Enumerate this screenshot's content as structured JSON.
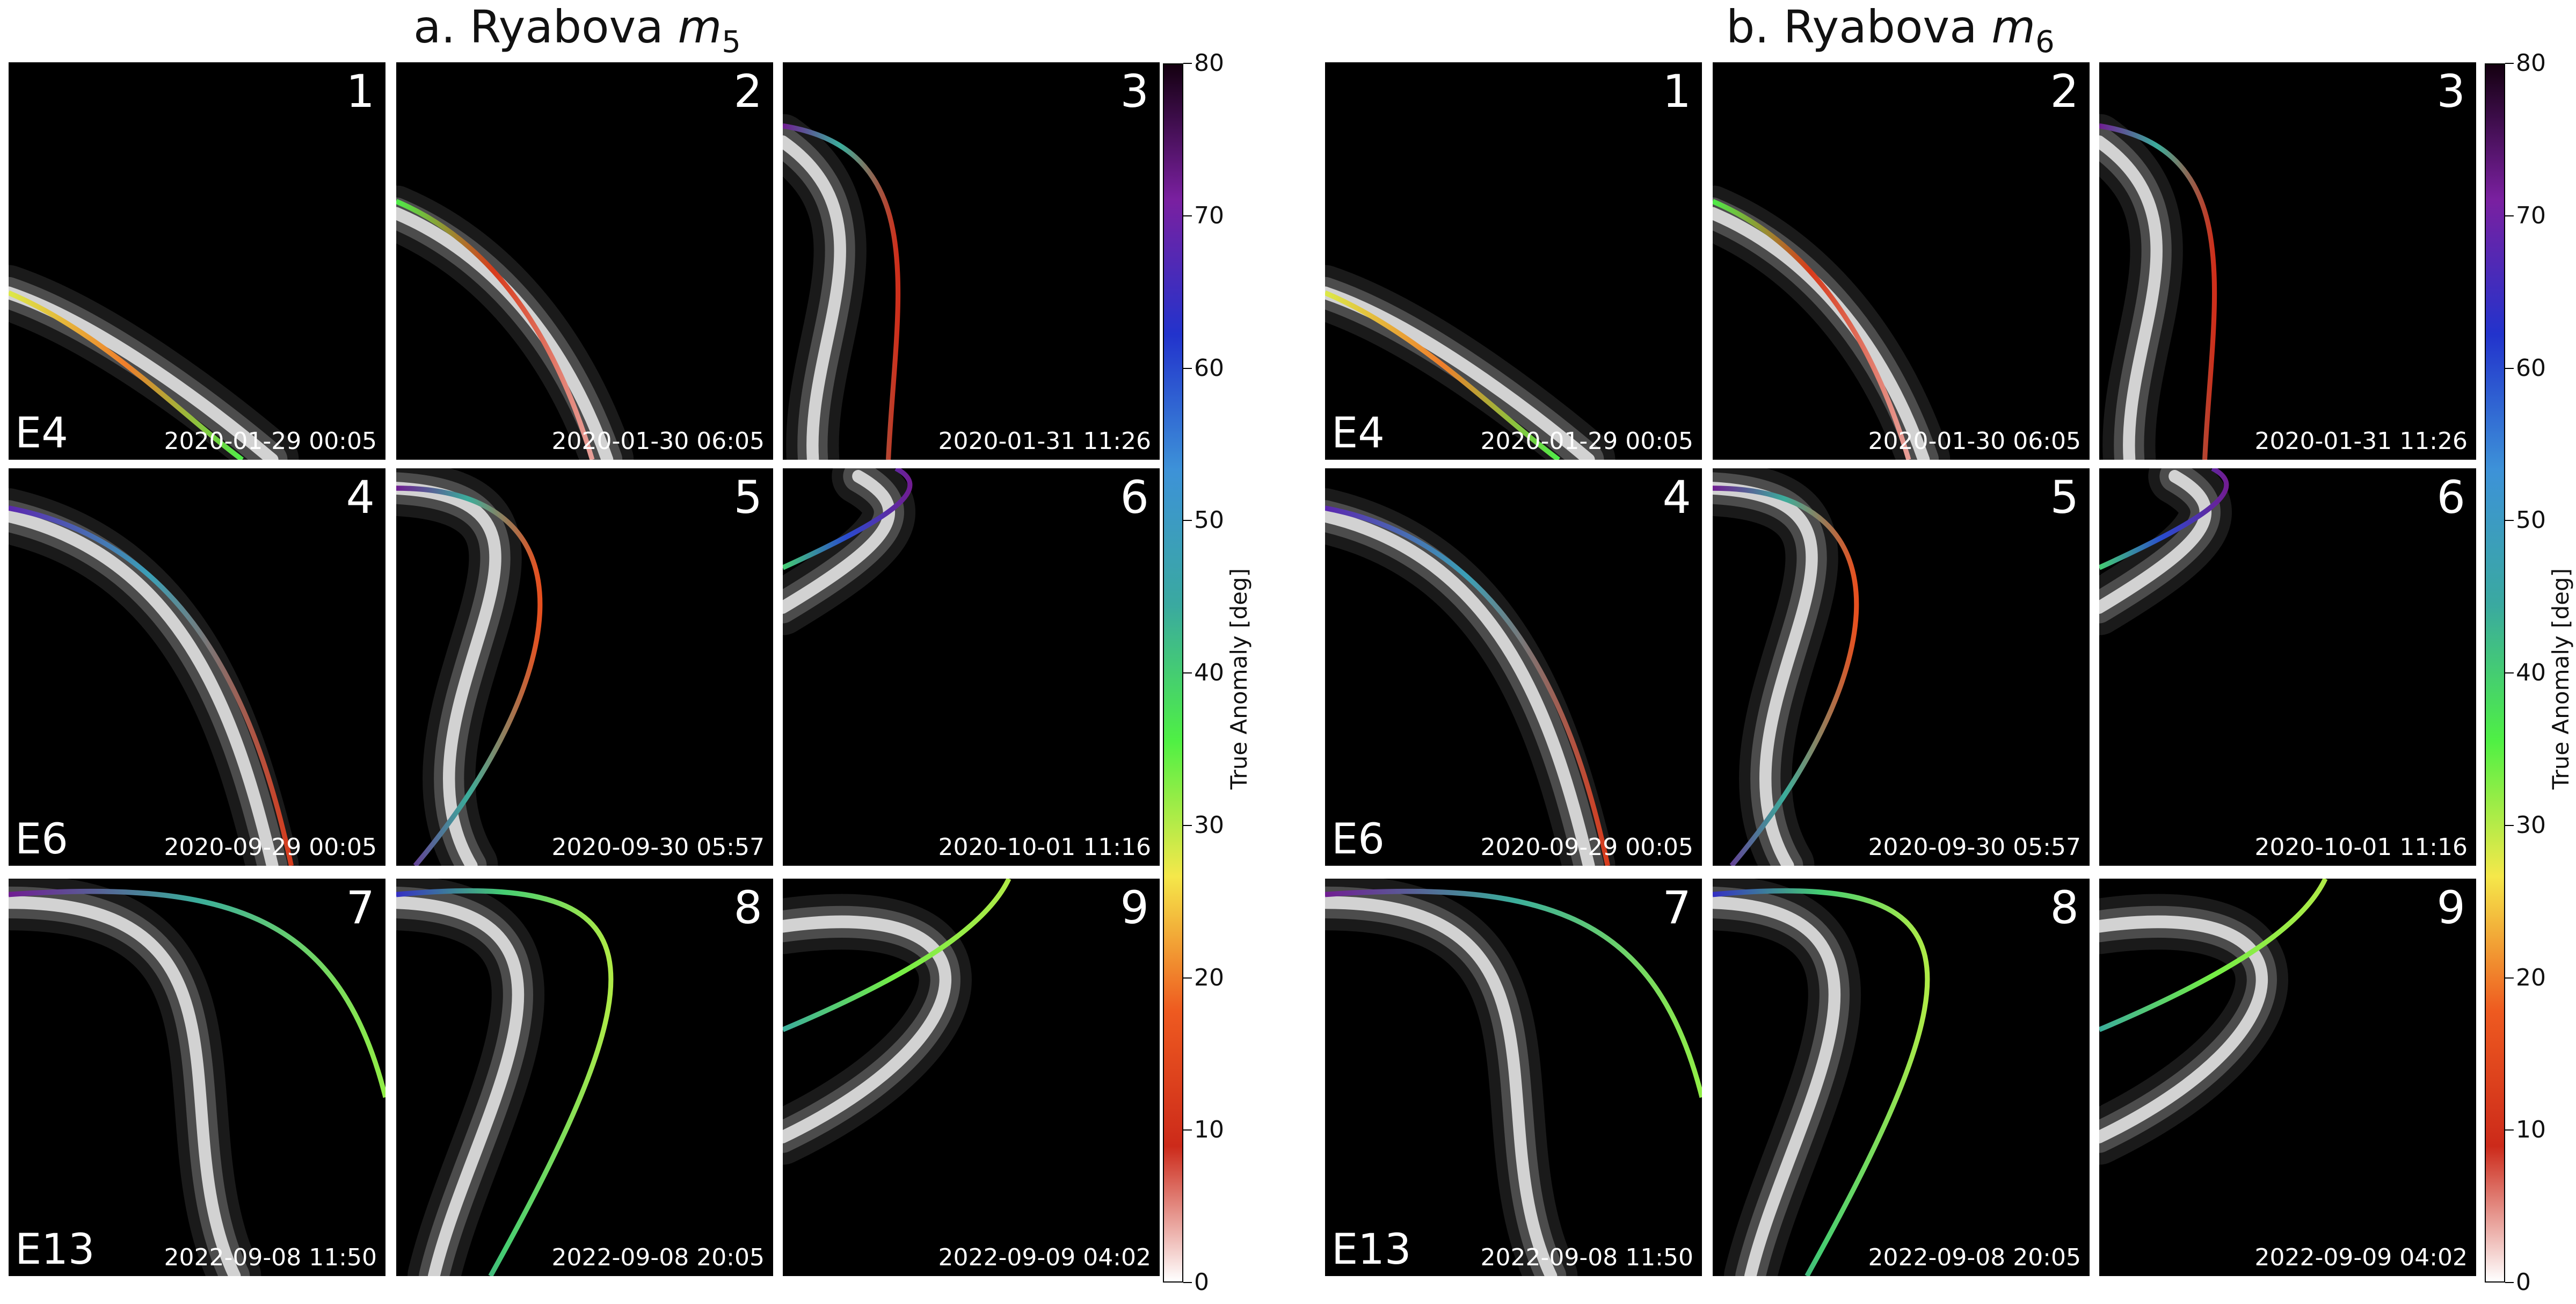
{
  "panels": [
    {
      "prefix": "a. Ryabova ",
      "model": "m",
      "model_sub": "5",
      "timestamps": [
        "2020-01-29 00:05",
        "2020-01-30 06:05",
        "2020-01-31 11:26",
        "2020-09-29 00:05",
        "2020-09-30 05:57",
        "2020-10-01 11:16",
        "2022-09-08 11:50",
        "2022-09-08 20:05",
        "2022-09-09 04:02"
      ]
    },
    {
      "prefix": "b. Ryabova ",
      "model": "m",
      "model_sub": "6",
      "timestamps": [
        "2020-01-29 00:05",
        "2020-01-30 06:05",
        "2020-01-31 11:26",
        "2020-09-29 00:05",
        "2020-09-30 05:57",
        "2020-10-01 11:16",
        "2022-09-08 11:50",
        "2022-09-08 20:05",
        "2022-09-09 04:02"
      ]
    }
  ],
  "tile_numbers": [
    "1",
    "2",
    "3",
    "4",
    "5",
    "6",
    "7",
    "8",
    "9"
  ],
  "encounter_labels": [
    "E4",
    "E6",
    "E13"
  ],
  "colorbar": {
    "label": "True Anomaly [deg]",
    "ticks": [
      "0",
      "10",
      "20",
      "30",
      "40",
      "50",
      "60",
      "70",
      "80"
    ],
    "range": [
      0,
      80
    ],
    "colors": [
      "#ffffff",
      "#cc2a1a",
      "#ee5a20",
      "#f5e84a",
      "#4ff044",
      "#3aa9a0",
      "#3d92d8",
      "#2233cc",
      "#7a20a0",
      "#140010"
    ]
  }
}
